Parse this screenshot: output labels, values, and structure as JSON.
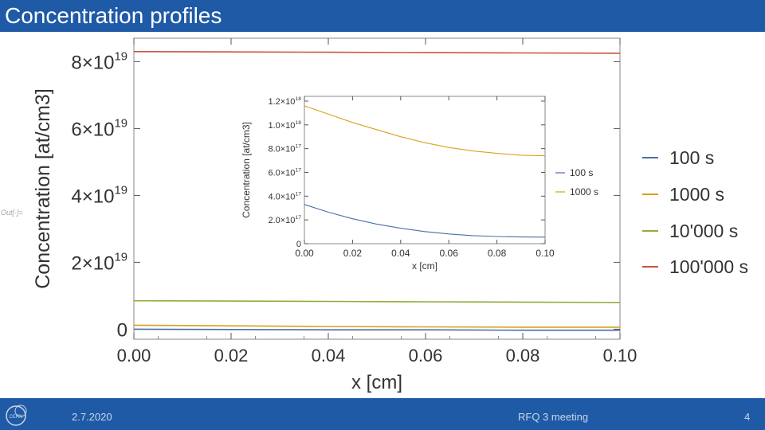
{
  "slide": {
    "title": "Concentration profiles",
    "footer_date": "2.7.2020",
    "footer_meeting": "RFQ 3 meeting",
    "page_number": "4",
    "out_label": "Out[·]=",
    "logo_icon": "cern-logo-icon",
    "title_bar_color": "#1f5aa6"
  },
  "chart_data": [
    {
      "type": "line",
      "title": "",
      "xlabel": "x [cm]",
      "ylabel": "Concentration [at/cm3]",
      "xlim": [
        0,
        0.1
      ],
      "ylim": [
        -3e+18,
        8.7e+19
      ],
      "x_ticks": [
        0.0,
        0.02,
        0.04,
        0.06,
        0.08,
        0.1
      ],
      "x_tick_labels": [
        "0.00",
        "0.02",
        "0.04",
        "0.06",
        "0.08",
        "0.10"
      ],
      "y_ticks": [
        0,
        2e+19,
        4e+19,
        6e+19,
        8e+19
      ],
      "y_tick_labels": [
        {
          "mantissa": "0",
          "exp": ""
        },
        {
          "mantissa": "2×10",
          "exp": "19"
        },
        {
          "mantissa": "4×10",
          "exp": "19"
        },
        {
          "mantissa": "6×10",
          "exp": "19"
        },
        {
          "mantissa": "8×10",
          "exp": "19"
        }
      ],
      "legend_position": "right",
      "series": [
        {
          "name": "100 s",
          "color": "#4a6fa5",
          "x": [
            0,
            0.02,
            0.04,
            0.06,
            0.08,
            0.1
          ],
          "y": [
            0.0,
            -1e+17,
            -2e+17,
            -2e+17,
            -3e+17,
            -3e+17
          ]
        },
        {
          "name": "1000 s",
          "color": "#d9a21b",
          "x": [
            0,
            0.02,
            0.04,
            0.06,
            0.08,
            0.1
          ],
          "y": [
            1.2e+18,
            1e+18,
            8e+17,
            7e+17,
            6e+17,
            6e+17
          ]
        },
        {
          "name": "10'000 s",
          "color": "#8fae3a",
          "x": [
            0,
            0.02,
            0.04,
            0.06,
            0.08,
            0.1
          ],
          "y": [
            8.5e+18,
            8.4e+18,
            8.3e+18,
            8.2e+18,
            8.1e+18,
            8e+18
          ]
        },
        {
          "name": "100'000 s",
          "color": "#c8553a",
          "x": [
            0,
            0.02,
            0.04,
            0.06,
            0.08,
            0.1
          ],
          "y": [
            8.3e+19,
            8.29e+19,
            8.28e+19,
            8.27e+19,
            8.26e+19,
            8.25e+19
          ]
        }
      ]
    },
    {
      "type": "line",
      "title": "",
      "xlabel": "x [cm]",
      "ylabel": "Concentration [at/cm3]",
      "xlim": [
        0,
        0.1
      ],
      "ylim": [
        0,
        1.24e+18
      ],
      "x_ticks": [
        0.0,
        0.02,
        0.04,
        0.06,
        0.08,
        0.1
      ],
      "x_tick_labels": [
        "0.00",
        "0.02",
        "0.04",
        "0.06",
        "0.08",
        "0.10"
      ],
      "y_ticks": [
        0,
        2e+17,
        4e+17,
        6e+17,
        8e+17,
        1e+18,
        1.2e+18
      ],
      "y_tick_labels": [
        {
          "mantissa": "0",
          "exp": ""
        },
        {
          "mantissa": "2.0×10",
          "exp": "17"
        },
        {
          "mantissa": "4.0×10",
          "exp": "17"
        },
        {
          "mantissa": "6.0×10",
          "exp": "17"
        },
        {
          "mantissa": "8.0×10",
          "exp": "17"
        },
        {
          "mantissa": "1.0×10",
          "exp": "18"
        },
        {
          "mantissa": "1.2×10",
          "exp": "18"
        }
      ],
      "legend_position": "right",
      "series": [
        {
          "name": "100 s",
          "color": "#4a6fa5",
          "x": [
            0,
            0.01,
            0.02,
            0.03,
            0.04,
            0.05,
            0.06,
            0.07,
            0.08,
            0.09,
            0.1
          ],
          "y": [
            3.3e+17,
            2.65e+17,
            2.1e+17,
            1.65e+17,
            1.3e+17,
            1.02e+17,
            8.2e+16,
            6.8e+16,
            6e+16,
            5.6e+16,
            5.5e+16
          ]
        },
        {
          "name": "1000 s",
          "color": "#d9a21b",
          "x": [
            0,
            0.01,
            0.02,
            0.03,
            0.04,
            0.05,
            0.06,
            0.07,
            0.08,
            0.09,
            0.1
          ],
          "y": [
            1.16e+18,
            1.09e+18,
            1.02e+18,
            9.6e+17,
            9e+17,
            8.5e+17,
            8.1e+17,
            7.8e+17,
            7.6e+17,
            7.45e+17,
            7.4e+17
          ]
        }
      ]
    }
  ]
}
